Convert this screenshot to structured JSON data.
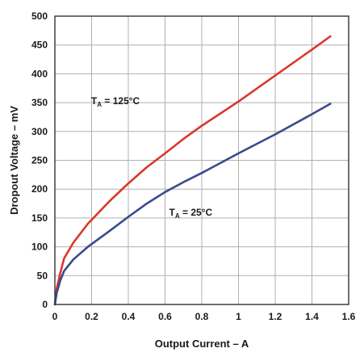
{
  "chart_data": {
    "type": "line",
    "title": "",
    "xlabel": "Output Current – A",
    "ylabel": "Dropout Voltage – mV",
    "xlim": [
      0,
      1.6
    ],
    "ylim": [
      0,
      500
    ],
    "xticks": [
      "0",
      "0.2",
      "0.4",
      "0.6",
      "0.8",
      "1",
      "1.2",
      "1.4",
      "1.6"
    ],
    "yticks": [
      "0",
      "50",
      "100",
      "150",
      "200",
      "250",
      "300",
      "350",
      "400",
      "450",
      "500"
    ],
    "xtick_values": [
      0,
      0.2,
      0.4,
      0.6,
      0.8,
      1.0,
      1.2,
      1.4,
      1.6
    ],
    "ytick_values": [
      0,
      50,
      100,
      150,
      200,
      250,
      300,
      350,
      400,
      450,
      500
    ],
    "grid": true,
    "legend": "none",
    "series": [
      {
        "color": "#d9372b",
        "x": [
          0,
          0.01,
          0.03,
          0.05,
          0.1,
          0.18,
          0.3,
          0.4,
          0.5,
          0.6,
          0.7,
          0.8,
          1.0,
          1.2,
          1.4,
          1.5
        ],
        "y": [
          0,
          28,
          55,
          80,
          107,
          140,
          180,
          210,
          238,
          262,
          287,
          310,
          352,
          397,
          442,
          465
        ]
      },
      {
        "color": "#3a4a8c",
        "x": [
          0,
          0.01,
          0.03,
          0.05,
          0.1,
          0.18,
          0.3,
          0.4,
          0.5,
          0.6,
          0.7,
          0.8,
          1.0,
          1.2,
          1.4,
          1.5
        ],
        "y": [
          0,
          20,
          42,
          58,
          78,
          100,
          128,
          152,
          175,
          195,
          212,
          228,
          262,
          295,
          330,
          348
        ]
      }
    ],
    "annotations": [
      {
        "text_main": "T",
        "text_sub": "A",
        "text_rest": " = 125°C",
        "x": 0.33,
        "y": 347
      },
      {
        "text_main": "T",
        "text_sub": "A",
        "text_rest": " = 25°C",
        "x": 0.74,
        "y": 154
      }
    ]
  }
}
